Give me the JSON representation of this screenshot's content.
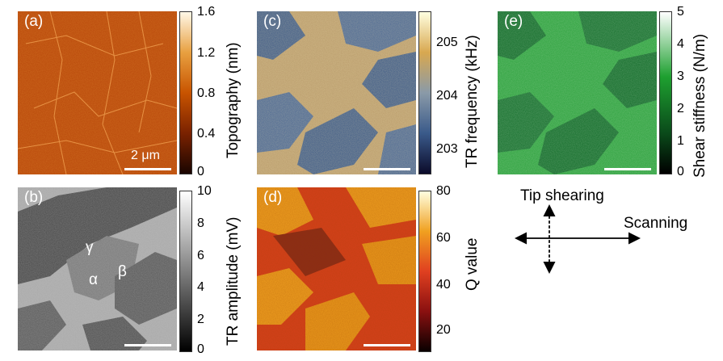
{
  "figure": {
    "panels": [
      {
        "id": "a",
        "label": "(a)",
        "scale_bar": "2 μm",
        "colorbar": {
          "label": "Topography (nm)",
          "ticks": [
            "1.6",
            "1.2",
            "0.8",
            "0.4",
            "0"
          ],
          "range": [
            0,
            1.6
          ],
          "colormap": [
            "#1a0500",
            "#7a2200",
            "#c85400",
            "#e8a040",
            "#fff8e8"
          ]
        }
      },
      {
        "id": "b",
        "label": "(b)",
        "phase_labels": [
          "γ",
          "α",
          "β"
        ],
        "colorbar": {
          "label": "TR amplitude (mV)",
          "ticks": [
            "10",
            "8",
            "6",
            "4",
            "2",
            "0"
          ],
          "range": [
            0,
            10
          ],
          "colormap": [
            "#000000",
            "#ffffff"
          ]
        }
      },
      {
        "id": "c",
        "label": "(c)",
        "colorbar": {
          "label": "TR frequency (kHz)",
          "ticks": [
            "205",
            "204",
            "203"
          ],
          "range": [
            202.5,
            205.5
          ],
          "colormap": [
            "#0b0b2a",
            "#3a5a8a",
            "#8a9aa8",
            "#d8a850",
            "#ffffe0"
          ]
        }
      },
      {
        "id": "d",
        "label": "(d)",
        "colorbar": {
          "label": "Q value",
          "ticks": [
            "80",
            "60",
            "40",
            "20"
          ],
          "range": [
            12,
            80
          ],
          "colormap": [
            "#0a0000",
            "#8a1010",
            "#e04020",
            "#f0a020",
            "#ffffe0"
          ]
        }
      },
      {
        "id": "e",
        "label": "(e)",
        "colorbar": {
          "label": "Shear stiffness (N/m)",
          "ticks": [
            "5",
            "4",
            "3",
            "2",
            "1",
            "0"
          ],
          "range": [
            0,
            5
          ],
          "colormap": [
            "#000000",
            "#0a4a1a",
            "#1ea030",
            "#ffffff"
          ]
        }
      }
    ],
    "diagram": {
      "tip_label": "Tip shearing",
      "scan_label": "Scanning"
    }
  }
}
